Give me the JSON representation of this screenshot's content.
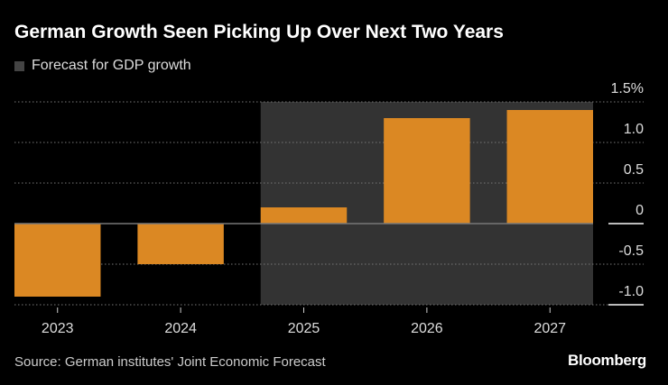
{
  "chart_data": {
    "type": "bar",
    "title": "German Growth Seen Picking Up Over Next Two Years",
    "legend": [
      {
        "label": "Forecast for GDP growth",
        "color": "#444444"
      }
    ],
    "legend_placement": "top-left",
    "categories": [
      "2023",
      "2024",
      "2025",
      "2026",
      "2027"
    ],
    "values": [
      -0.9,
      -0.5,
      0.2,
      1.3,
      1.4
    ],
    "forecast_categories": [
      "2025",
      "2026",
      "2027"
    ],
    "ylim": [
      -1.0,
      1.5
    ],
    "yticks": [
      1.5,
      1.0,
      0.5,
      0,
      -0.5,
      -1.0
    ],
    "ytick_labels": [
      "1.5%",
      "1.0",
      "0.5",
      "0",
      "-0.5",
      "-1.0"
    ],
    "y_axis_side": "right",
    "grid": true,
    "bar_color": "#db8823",
    "source": "Source: German institutes' Joint Economic Forecast",
    "brand": "Bloomberg"
  }
}
